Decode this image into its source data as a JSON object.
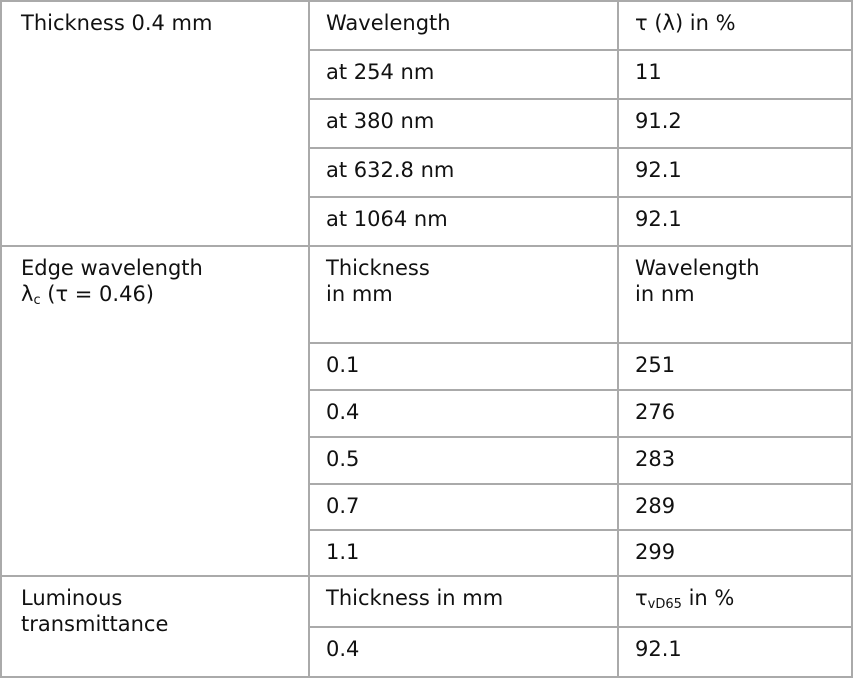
{
  "sections": [
    {
      "label": "Thickness 0.4 mm",
      "header": [
        "Wavelength",
        "τ (λ) in %"
      ],
      "rows": [
        [
          "at 254 nm",
          "11"
        ],
        [
          "at 380 nm",
          "91.2"
        ],
        [
          "at 632.8 nm",
          "92.1"
        ],
        [
          "at 1064 nm",
          "92.1"
        ]
      ]
    },
    {
      "label_line1": "Edge wavelength",
      "label_symbol": "λ",
      "label_sub": "c",
      "label_rest": " (τ = 0.46)",
      "header": [
        "Thickness",
        "in mm",
        "Wavelength",
        "in nm"
      ],
      "rows": [
        [
          "0.1",
          "251"
        ],
        [
          "0.4",
          "276"
        ],
        [
          "0.5",
          "283"
        ],
        [
          "0.7",
          "289"
        ],
        [
          "1.1",
          "299"
        ]
      ]
    },
    {
      "label_line1": "Luminous",
      "label_line2": "transmittance",
      "header": [
        "Thickness in mm",
        "τ",
        "vD65",
        " in %"
      ],
      "rows": [
        [
          "0.4",
          "92.1"
        ]
      ]
    }
  ]
}
